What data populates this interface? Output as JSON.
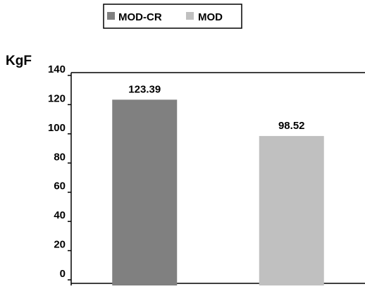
{
  "chart_data": {
    "type": "bar",
    "categories": [
      "MOD-CR",
      "MOD"
    ],
    "series": [
      {
        "name": "MOD-CR",
        "values": [
          123.39,
          null
        ]
      },
      {
        "name": "MOD",
        "values": [
          null,
          98.52
        ]
      }
    ],
    "data_labels": [
      "123.39",
      "98.52"
    ],
    "title": "",
    "xlabel": "",
    "ylabel": "KgF",
    "ylim": [
      0,
      140
    ],
    "yticks": [
      0,
      20,
      40,
      60,
      80,
      100,
      120,
      140
    ],
    "grid": false,
    "legend_position": "top-center",
    "legend": [
      {
        "label": "MOD-CR",
        "color": "#808080"
      },
      {
        "label": "MOD",
        "color": "#c0c0c0"
      }
    ],
    "colors": {
      "MOD-CR": "#808080",
      "MOD": "#c0c0c0"
    }
  }
}
